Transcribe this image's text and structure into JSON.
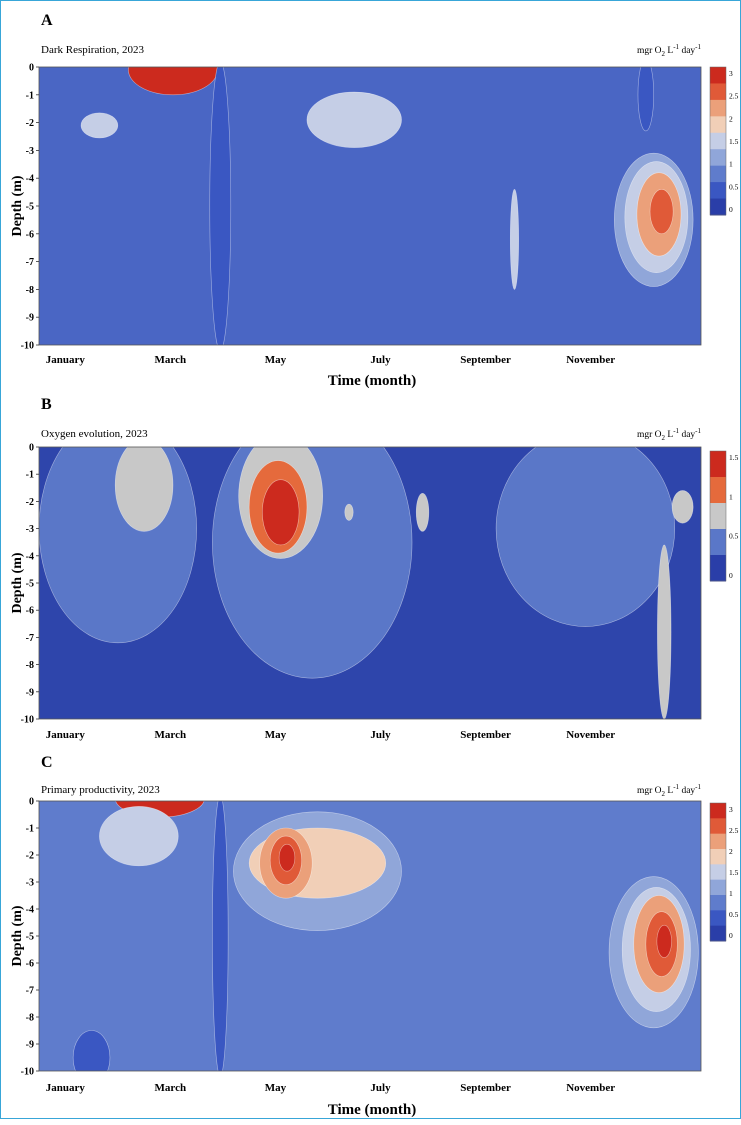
{
  "chart_data": [
    {
      "type": "heatmap",
      "panel_label": "A",
      "title": "Dark Respiration, 2023",
      "unit": "mgr O",
      "unit_sub": "2",
      "unit_rest": " L",
      "unit_exp1": "-1",
      "unit_day": " day",
      "unit_exp2": "-1",
      "xlabel": "Time (month)",
      "ylabel": "Depth (m)",
      "x_ticks": [
        "January",
        "March",
        "May",
        "July",
        "September",
        "November"
      ],
      "y_ticks": [
        "0",
        "-1",
        "-2",
        "-3",
        "-4",
        "-5",
        "-6",
        "-7",
        "-8",
        "-9",
        "-10"
      ],
      "ylim": [
        -10,
        0
      ],
      "colorbar": {
        "ticks": [
          "3",
          "2.5",
          "2",
          "1.5",
          "1",
          "0.5",
          "0"
        ],
        "colors": [
          "#cc2a1e",
          "#e05a38",
          "#eba07a",
          "#f1cfb7",
          "#c5cee6",
          "#90a6d9",
          "#5f7ccc",
          "#3a57c2",
          "#2a3ea8"
        ]
      },
      "background": "#4a66c4",
      "blobs": [
        {
          "color": "#cc2a1e",
          "month": 2.55,
          "depth": -0.1,
          "rx": 0.85,
          "ry": 0.9
        },
        {
          "color": "#c5cee6",
          "month": 1.15,
          "depth": -2.1,
          "rx": 0.35,
          "ry": 0.45
        },
        {
          "color": "#c5cee6",
          "month": 6.0,
          "depth": -1.9,
          "rx": 0.9,
          "ry": 1.0
        },
        {
          "color": "#c5cee6",
          "month": 9.05,
          "depth": -6.2,
          "rx": 0.08,
          "ry": 1.8
        },
        {
          "color": "#90a6d9",
          "month": 11.7,
          "depth": -5.5,
          "rx": 0.75,
          "ry": 2.4
        },
        {
          "color": "#c5cee6",
          "month": 11.75,
          "depth": -5.4,
          "rx": 0.6,
          "ry": 2.0
        },
        {
          "color": "#eba07a",
          "month": 11.8,
          "depth": -5.3,
          "rx": 0.42,
          "ry": 1.5
        },
        {
          "color": "#e05a38",
          "month": 11.85,
          "depth": -5.2,
          "rx": 0.22,
          "ry": 0.8
        },
        {
          "color": "#3a57c2",
          "month": 3.45,
          "depth": -5.0,
          "rx": 0.2,
          "ry": 5.2
        },
        {
          "color": "#3a57c2",
          "month": 11.55,
          "depth": -1.0,
          "rx": 0.15,
          "ry": 1.3
        }
      ]
    },
    {
      "type": "heatmap",
      "panel_label": "B",
      "title": "Oxygen evolution, 2023",
      "unit": "mgr O",
      "unit_sub": "2",
      "unit_rest": " L",
      "unit_exp1": "-1",
      "unit_day": " day",
      "unit_exp2": "-1",
      "xlabel": "",
      "ylabel": "Depth (m)",
      "x_ticks": [
        "January",
        "March",
        "May",
        "July",
        "September",
        "November"
      ],
      "y_ticks": [
        "0",
        "-1",
        "-2",
        "-3",
        "-4",
        "-5",
        "-6",
        "-7",
        "-8",
        "-9",
        "-10"
      ],
      "ylim": [
        -10,
        0
      ],
      "colorbar": {
        "ticks": [
          "1.5",
          "1",
          "0.5",
          "0"
        ],
        "colors": [
          "#cc2a1e",
          "#e56a3c",
          "#c8c8c8",
          "#5a77c8",
          "#2a3ea8"
        ]
      },
      "background": "#2e45ab",
      "blobs": [
        {
          "color": "#5a77c8",
          "month": 1.5,
          "depth": -3.0,
          "rx": 1.5,
          "ry": 4.2
        },
        {
          "color": "#5a77c8",
          "month": 5.2,
          "depth": -3.5,
          "rx": 1.9,
          "ry": 5.0
        },
        {
          "color": "#5a77c8",
          "month": 10.4,
          "depth": -3.0,
          "rx": 1.7,
          "ry": 3.6
        },
        {
          "color": "#c8c8c8",
          "month": 2.0,
          "depth": -1.4,
          "rx": 0.55,
          "ry": 1.7
        },
        {
          "color": "#c8c8c8",
          "month": 4.6,
          "depth": -1.8,
          "rx": 0.8,
          "ry": 2.3
        },
        {
          "color": "#e56a3c",
          "month": 4.55,
          "depth": -2.2,
          "rx": 0.55,
          "ry": 1.7
        },
        {
          "color": "#cc2a1e",
          "month": 4.6,
          "depth": -2.4,
          "rx": 0.35,
          "ry": 1.2
        },
        {
          "color": "#c8c8c8",
          "month": 5.9,
          "depth": -2.4,
          "rx": 0.08,
          "ry": 0.3
        },
        {
          "color": "#c8c8c8",
          "month": 7.3,
          "depth": -2.4,
          "rx": 0.12,
          "ry": 0.7
        },
        {
          "color": "#c8c8c8",
          "month": 11.9,
          "depth": -6.8,
          "rx": 0.13,
          "ry": 3.2
        },
        {
          "color": "#c8c8c8",
          "month": 12.25,
          "depth": -2.2,
          "rx": 0.2,
          "ry": 0.6
        }
      ]
    },
    {
      "type": "heatmap",
      "panel_label": "C",
      "title": "Primary productivity, 2023",
      "unit": "mgr O",
      "unit_sub": "2",
      "unit_rest": " L",
      "unit_exp1": "-1",
      "unit_day": " day",
      "unit_exp2": "-1",
      "xlabel": "Time (month)",
      "ylabel": "Depth (m)",
      "x_ticks": [
        "January",
        "March",
        "May",
        "July",
        "September",
        "November"
      ],
      "y_ticks": [
        "0",
        "-1",
        "-2",
        "-3",
        "-4",
        "-5",
        "-6",
        "-7",
        "-8",
        "-9",
        "-10"
      ],
      "ylim": [
        -10,
        0
      ],
      "colorbar": {
        "ticks": [
          "3",
          "2.5",
          "2",
          "1.5",
          "1",
          "0.5",
          "0"
        ],
        "colors": [
          "#cc2a1e",
          "#e05a38",
          "#eba07a",
          "#f1cfb7",
          "#c5cee6",
          "#90a6d9",
          "#5f7ccc",
          "#3a57c2",
          "#2a3ea8"
        ]
      },
      "background": "#5f7ccc",
      "blobs": [
        {
          "color": "#cc2a1e",
          "month": 2.3,
          "depth": 0.1,
          "rx": 0.85,
          "ry": 0.7
        },
        {
          "color": "#c5cee6",
          "month": 1.9,
          "depth": -1.3,
          "rx": 0.75,
          "ry": 1.1
        },
        {
          "color": "#90a6d9",
          "month": 5.3,
          "depth": -2.6,
          "rx": 1.6,
          "ry": 2.2
        },
        {
          "color": "#f1cfb7",
          "month": 5.3,
          "depth": -2.3,
          "rx": 1.3,
          "ry": 1.3
        },
        {
          "color": "#eba07a",
          "month": 4.7,
          "depth": -2.3,
          "rx": 0.5,
          "ry": 1.3
        },
        {
          "color": "#e05a38",
          "month": 4.7,
          "depth": -2.2,
          "rx": 0.3,
          "ry": 0.9
        },
        {
          "color": "#cc2a1e",
          "month": 4.72,
          "depth": -2.1,
          "rx": 0.15,
          "ry": 0.5
        },
        {
          "color": "#90a6d9",
          "month": 11.7,
          "depth": -5.6,
          "rx": 0.85,
          "ry": 2.8
        },
        {
          "color": "#c5cee6",
          "month": 11.75,
          "depth": -5.5,
          "rx": 0.65,
          "ry": 2.3
        },
        {
          "color": "#eba07a",
          "month": 11.8,
          "depth": -5.3,
          "rx": 0.48,
          "ry": 1.8
        },
        {
          "color": "#e05a38",
          "month": 11.85,
          "depth": -5.3,
          "rx": 0.3,
          "ry": 1.2
        },
        {
          "color": "#cc2a1e",
          "month": 11.9,
          "depth": -5.2,
          "rx": 0.14,
          "ry": 0.6
        },
        {
          "color": "#3a57c2",
          "month": 3.45,
          "depth": -5.0,
          "rx": 0.15,
          "ry": 5.2
        },
        {
          "color": "#3a57c2",
          "month": 1.0,
          "depth": -9.5,
          "rx": 0.35,
          "ry": 1.0
        }
      ]
    }
  ]
}
